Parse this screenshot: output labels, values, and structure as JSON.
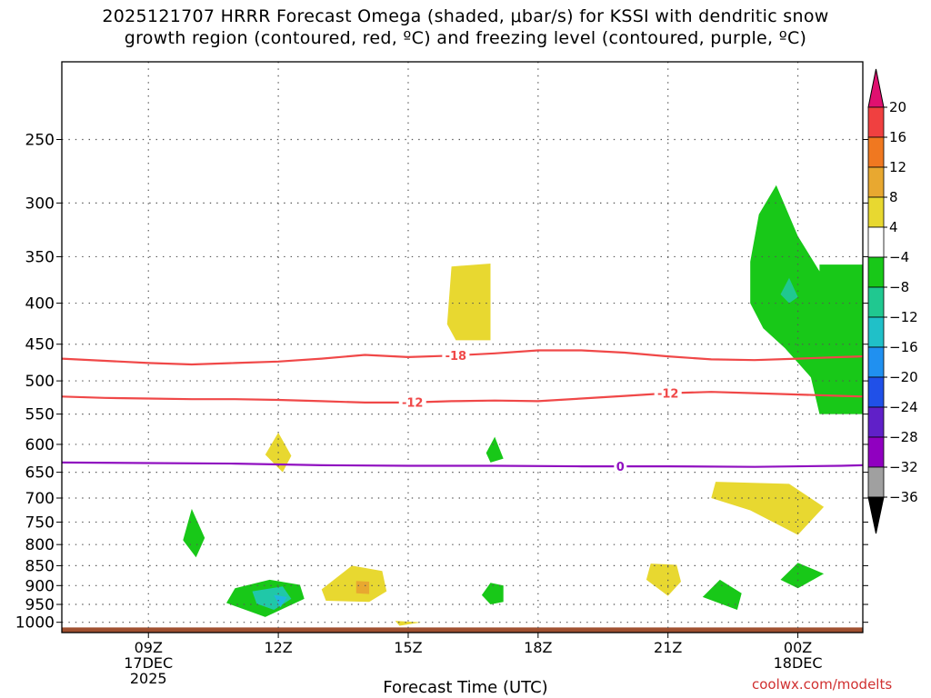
{
  "title": {
    "line1": "2025121707 HRRR Forecast Omega (shaded, μbar/s) for KSSI with dendritic snow",
    "line2": "growth region (contoured, red, ºC) and freezing level (contoured, purple, ºC)"
  },
  "credit": "coolwx.com/modelts",
  "chart_data": {
    "type": "contour",
    "xlabel": "Forecast Time (UTC)",
    "ylabel": "",
    "x_unit": "forecast hour (UTC, 17 DEC 2025)",
    "xlim": [
      7,
      25.5
    ],
    "ylim": [
      1030,
      200
    ],
    "y_scale": "log",
    "x_ticks": [
      {
        "x": 9,
        "lines": [
          "09Z",
          "17DEC",
          "2025"
        ]
      },
      {
        "x": 12,
        "lines": [
          "12Z"
        ]
      },
      {
        "x": 15,
        "lines": [
          "15Z"
        ]
      },
      {
        "x": 18,
        "lines": [
          "18Z"
        ]
      },
      {
        "x": 21,
        "lines": [
          "21Z"
        ]
      },
      {
        "x": 24,
        "lines": [
          "00Z",
          "18DEC"
        ]
      }
    ],
    "y_ticks": [
      250,
      300,
      350,
      400,
      450,
      500,
      550,
      600,
      650,
      700,
      750,
      800,
      850,
      900,
      950,
      1000
    ],
    "grid": true,
    "colorbar": {
      "labels": [
        "20",
        "16",
        "12",
        "8",
        "4",
        "−4",
        "−8",
        "−12",
        "−16",
        "−20",
        "−24",
        "−28",
        "−32",
        "−36"
      ],
      "colors": [
        "#f04040",
        "#f07820",
        "#e8a830",
        "#e8d830",
        "#ffffff",
        "#18c818",
        "#20c890",
        "#20c0c8",
        "#2090f0",
        "#2050e8",
        "#6020c8",
        "#9000c0",
        "#a0a0a0"
      ],
      "top_arrow_color": "#e01070",
      "bottom_arrow_color": "#000000"
    },
    "contours": [
      {
        "name": "-18",
        "color": "#f04848",
        "points": [
          [
            7,
            469
          ],
          [
            8,
            472
          ],
          [
            9,
            475
          ],
          [
            10,
            477
          ],
          [
            11,
            475
          ],
          [
            12,
            473
          ],
          [
            13,
            469
          ],
          [
            14,
            464
          ],
          [
            15,
            467
          ],
          [
            16,
            465
          ],
          [
            17,
            462
          ],
          [
            18,
            458
          ],
          [
            19,
            458
          ],
          [
            20,
            461
          ],
          [
            21,
            466
          ],
          [
            22,
            470
          ],
          [
            23,
            471
          ],
          [
            24,
            469
          ],
          [
            25,
            467
          ],
          [
            25.5,
            466
          ]
        ],
        "label_at": 16.1
      },
      {
        "name": "-12",
        "color": "#f04848",
        "points": [
          [
            7,
            523
          ],
          [
            8,
            525
          ],
          [
            9,
            526
          ],
          [
            10,
            527
          ],
          [
            11,
            527
          ],
          [
            12,
            528
          ],
          [
            13,
            530
          ],
          [
            14,
            532
          ],
          [
            15,
            532
          ],
          [
            16,
            530
          ],
          [
            17,
            529
          ],
          [
            18,
            530
          ],
          [
            19,
            526
          ],
          [
            20,
            522
          ],
          [
            21,
            518
          ],
          [
            22,
            516
          ],
          [
            23,
            518
          ],
          [
            24,
            520
          ],
          [
            25,
            522
          ],
          [
            25.5,
            523
          ]
        ],
        "label_at": 15.1,
        "label_at2": 21.0
      },
      {
        "name": "0",
        "color": "#9010c0",
        "points": [
          [
            7,
            632
          ],
          [
            9,
            633
          ],
          [
            11,
            634
          ],
          [
            13,
            637
          ],
          [
            15,
            638
          ],
          [
            17,
            638
          ],
          [
            19,
            639
          ],
          [
            21,
            639
          ],
          [
            23,
            640
          ],
          [
            25,
            638
          ],
          [
            25.5,
            637
          ]
        ],
        "label_at": 19.9
      }
    ],
    "regions": [
      {
        "color": "#e8d830",
        "points": [
          [
            16.0,
            360
          ],
          [
            16.9,
            357
          ],
          [
            16.9,
            445
          ],
          [
            16.1,
            445
          ],
          [
            15.9,
            425
          ]
        ]
      },
      {
        "color": "#18c818",
        "points": [
          [
            23.5,
            285
          ],
          [
            24.0,
            330
          ],
          [
            24.5,
            365
          ],
          [
            24.5,
            358
          ],
          [
            25.5,
            358
          ],
          [
            25.5,
            550
          ],
          [
            24.5,
            550
          ],
          [
            24.3,
            495
          ],
          [
            23.7,
            455
          ],
          [
            23.2,
            430
          ],
          [
            22.9,
            400
          ],
          [
            22.9,
            355
          ],
          [
            23.1,
            310
          ]
        ]
      },
      {
        "color": "#20c890",
        "points": [
          [
            23.8,
            372
          ],
          [
            24.0,
            393
          ],
          [
            23.8,
            400
          ],
          [
            23.6,
            390
          ]
        ]
      },
      {
        "color": "#e8d830",
        "points": [
          [
            12.0,
            580
          ],
          [
            12.3,
            620
          ],
          [
            12.1,
            650
          ],
          [
            11.7,
            618
          ]
        ]
      },
      {
        "color": "#18c818",
        "points": [
          [
            17.0,
            587
          ],
          [
            17.2,
            625
          ],
          [
            16.9,
            632
          ],
          [
            16.8,
            615
          ]
        ]
      },
      {
        "color": "#e8d830",
        "points": [
          [
            22.1,
            668
          ],
          [
            23.8,
            672
          ],
          [
            24.6,
            718
          ],
          [
            24.0,
            778
          ],
          [
            22.9,
            725
          ],
          [
            22.0,
            700
          ]
        ]
      },
      {
        "color": "#18c818",
        "points": [
          [
            10.0,
            722
          ],
          [
            10.3,
            785
          ],
          [
            10.1,
            830
          ],
          [
            9.8,
            790
          ]
        ]
      },
      {
        "color": "#18c818",
        "points": [
          [
            11.0,
            907
          ],
          [
            11.8,
            885
          ],
          [
            12.5,
            898
          ],
          [
            12.6,
            935
          ],
          [
            11.7,
            985
          ],
          [
            10.8,
            946
          ]
        ]
      },
      {
        "color": "#20c8a8",
        "points": [
          [
            11.4,
            915
          ],
          [
            12.1,
            902
          ],
          [
            12.3,
            935
          ],
          [
            11.9,
            965
          ],
          [
            11.5,
            948
          ]
        ]
      },
      {
        "color": "#20b8e0",
        "points": [
          [
            11.9,
            925
          ],
          [
            12.2,
            930
          ],
          [
            12.05,
            958
          ]
        ]
      },
      {
        "color": "#e8d830",
        "points": [
          [
            13.0,
            910
          ],
          [
            13.7,
            850
          ],
          [
            14.4,
            863
          ],
          [
            14.5,
            915
          ],
          [
            14.1,
            943
          ],
          [
            13.1,
            940
          ]
        ]
      },
      {
        "color": "#e8a830",
        "points": [
          [
            13.8,
            888
          ],
          [
            14.1,
            890
          ],
          [
            14.1,
            922
          ],
          [
            13.8,
            920
          ]
        ]
      },
      {
        "color": "#18c818",
        "points": [
          [
            16.9,
            893
          ],
          [
            17.2,
            900
          ],
          [
            17.2,
            943
          ],
          [
            16.9,
            950
          ],
          [
            16.7,
            925
          ]
        ]
      },
      {
        "color": "#e8d830",
        "points": [
          [
            20.6,
            845
          ],
          [
            21.2,
            848
          ],
          [
            21.3,
            890
          ],
          [
            21.0,
            927
          ],
          [
            20.5,
            885
          ]
        ]
      },
      {
        "color": "#18c818",
        "points": [
          [
            22.2,
            885
          ],
          [
            22.7,
            920
          ],
          [
            22.6,
            965
          ],
          [
            21.8,
            930
          ]
        ]
      },
      {
        "color": "#18c818",
        "points": [
          [
            24.0,
            843
          ],
          [
            24.6,
            870
          ],
          [
            24.0,
            907
          ],
          [
            23.6,
            885
          ]
        ]
      },
      {
        "color": "#e8d830",
        "points": [
          [
            14.7,
            996
          ],
          [
            15.3,
            1000
          ],
          [
            14.8,
            1010
          ]
        ]
      }
    ],
    "ground": {
      "color": "#a05030",
      "top_pressure": 1015
    }
  }
}
